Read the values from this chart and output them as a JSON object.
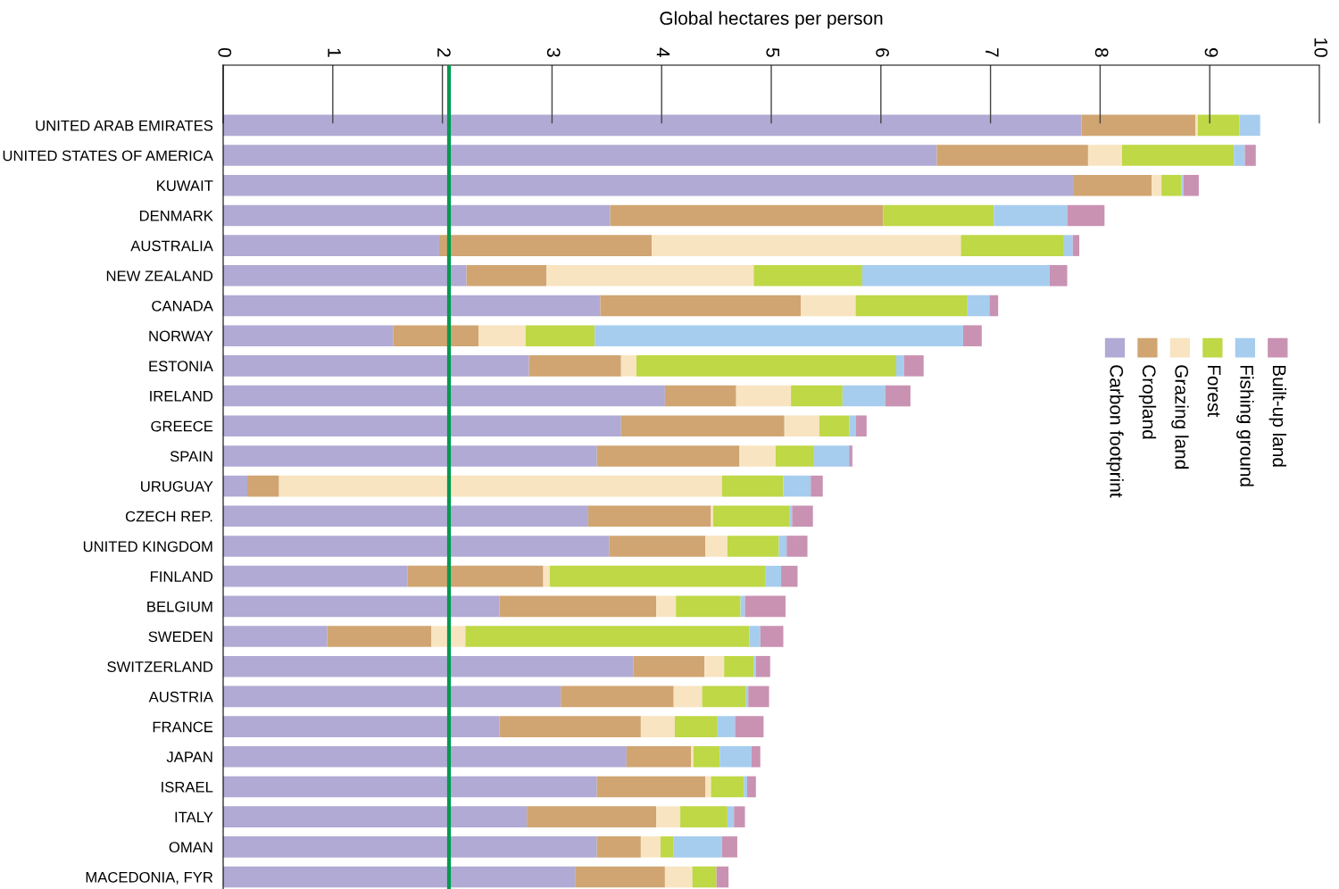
{
  "chart_data": {
    "type": "bar",
    "orientation": "horizontal",
    "stacked": true,
    "xlabel": "Global hectares per person",
    "categories": [
      "UNITED ARAB EMIRATES",
      "UNITED STATES OF AMERICA",
      "KUWAIT",
      "DENMARK",
      "AUSTRALIA",
      "NEW ZEALAND",
      "CANADA",
      "NORWAY",
      "ESTONIA",
      "IRELAND",
      "GREECE",
      "SPAIN",
      "URUGUAY",
      "CZECH REP.",
      "UNITED KINGDOM",
      "FINLAND",
      "BELGIUM",
      "SWEDEN",
      "SWITZERLAND",
      "AUSTRIA",
      "FRANCE",
      "JAPAN",
      "ISRAEL",
      "ITALY",
      "OMAN",
      "MACEDONIA, FYR"
    ],
    "series": [
      {
        "name": "Carbon footprint",
        "color": "#b0aad4",
        "values": [
          7.83,
          6.51,
          7.76,
          3.53,
          1.97,
          2.22,
          3.44,
          1.55,
          2.79,
          4.03,
          3.63,
          3.41,
          0.22,
          3.33,
          3.52,
          1.68,
          2.52,
          0.95,
          3.74,
          3.08,
          2.52,
          3.68,
          3.41,
          2.77,
          3.41,
          3.21
        ]
      },
      {
        "name": "Cropland",
        "color": "#d0a572",
        "values": [
          1.04,
          1.38,
          0.71,
          2.49,
          1.94,
          0.73,
          1.83,
          0.78,
          0.84,
          0.65,
          1.49,
          1.3,
          0.29,
          1.12,
          0.88,
          1.24,
          1.43,
          0.95,
          0.65,
          1.03,
          1.29,
          0.59,
          0.99,
          1.18,
          0.4,
          0.82
        ]
      },
      {
        "name": "Grazing land",
        "color": "#f8e4c0",
        "values": [
          0.02,
          0.31,
          0.09,
          0.0,
          2.82,
          1.89,
          0.5,
          0.43,
          0.14,
          0.5,
          0.32,
          0.33,
          4.04,
          0.02,
          0.2,
          0.06,
          0.18,
          0.31,
          0.18,
          0.26,
          0.31,
          0.02,
          0.05,
          0.22,
          0.18,
          0.25
        ]
      },
      {
        "name": "Forest",
        "color": "#bed846",
        "values": [
          0.38,
          1.02,
          0.18,
          1.01,
          0.94,
          0.99,
          1.02,
          0.63,
          2.37,
          0.47,
          0.27,
          0.35,
          0.56,
          0.7,
          0.47,
          1.97,
          0.59,
          2.59,
          0.27,
          0.4,
          0.39,
          0.24,
          0.3,
          0.43,
          0.12,
          0.22
        ]
      },
      {
        "name": "Fishing ground",
        "color": "#a6cdee",
        "values": [
          0.19,
          0.1,
          0.02,
          0.67,
          0.08,
          1.71,
          0.2,
          3.36,
          0.07,
          0.39,
          0.06,
          0.32,
          0.25,
          0.02,
          0.07,
          0.14,
          0.04,
          0.1,
          0.02,
          0.02,
          0.16,
          0.29,
          0.03,
          0.06,
          0.44,
          null
        ]
      },
      {
        "name": "Built-up land",
        "color": "#c992b2",
        "values": [
          0.0,
          0.1,
          0.14,
          0.34,
          0.06,
          0.16,
          0.08,
          0.17,
          0.18,
          0.23,
          0.1,
          0.03,
          0.11,
          0.19,
          0.19,
          0.15,
          0.37,
          0.21,
          0.13,
          0.19,
          0.26,
          0.08,
          0.08,
          0.1,
          0.14,
          0.11
        ]
      }
    ],
    "xlim": [
      0,
      10
    ],
    "xticks": [
      0,
      1,
      2,
      3,
      4,
      5,
      6,
      7,
      8,
      9,
      10
    ],
    "ref_lines": [
      {
        "axis": "x",
        "value": 2.06,
        "color": "#009a50"
      }
    ],
    "grid": false,
    "legend": "right"
  }
}
